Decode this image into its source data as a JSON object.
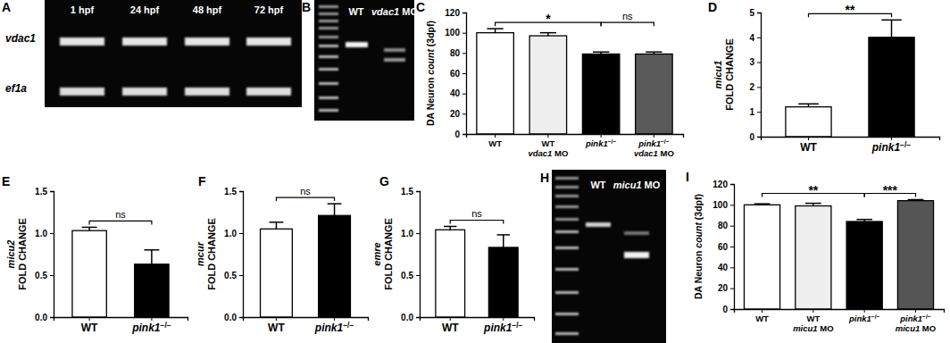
{
  "chart_data": [
    {
      "type": "bar",
      "panel_label": "C",
      "y_label": "DA Neuron count (3dpf)",
      "categories": [
        "WT",
        "WT vdac1 MO",
        "pink1−/−",
        "pink1−/− vdac1 MO"
      ],
      "values": [
        100,
        97,
        79,
        79
      ],
      "errors": [
        4,
        3,
        2,
        2
      ],
      "colors": [
        "#ffffff",
        "#eeeeee",
        "#000000",
        "#5a5a5a"
      ],
      "ylim": [
        0,
        120
      ],
      "yticks": [
        0,
        20,
        40,
        60,
        80,
        100,
        120
      ],
      "annotations": [
        {
          "from": 0,
          "to": 2,
          "text": "*"
        },
        {
          "from": 2,
          "to": 3,
          "text": "ns"
        }
      ]
    },
    {
      "type": "bar",
      "panel_label": "D",
      "y_label": "micu1 FOLD CHANGE",
      "categories": [
        "WT",
        "pink1−/−"
      ],
      "values": [
        1.2,
        4.0
      ],
      "errors": [
        0.12,
        0.7
      ],
      "colors": [
        "#ffffff",
        "#000000"
      ],
      "ylim": [
        0,
        5
      ],
      "yticks": [
        0,
        1,
        2,
        3,
        4,
        5
      ],
      "annotations": [
        {
          "from": 0,
          "to": 1,
          "text": "**"
        }
      ]
    },
    {
      "type": "bar",
      "panel_label": "E",
      "y_label": "micu2 FOLD CHANGE",
      "categories": [
        "WT",
        "pink1−/−"
      ],
      "values": [
        1.03,
        0.63
      ],
      "errors": [
        0.04,
        0.17
      ],
      "colors": [
        "#ffffff",
        "#000000"
      ],
      "ylim": [
        0,
        1.5
      ],
      "yticks": [
        {
          "value": 0,
          "label": "0.0"
        },
        {
          "value": 0.5,
          "label": "0.5"
        },
        {
          "value": 1,
          "label": "1.0"
        },
        {
          "value": 1.5,
          "label": "1.5"
        }
      ],
      "annotations": [
        {
          "from": 0,
          "to": 1,
          "text": "ns"
        }
      ]
    },
    {
      "type": "bar",
      "panel_label": "F",
      "y_label": "mcur FOLD CHANGE",
      "categories": [
        "WT",
        "pink1−/−"
      ],
      "values": [
        1.05,
        1.21
      ],
      "errors": [
        0.08,
        0.14
      ],
      "colors": [
        "#ffffff",
        "#000000"
      ],
      "ylim": [
        0,
        1.5
      ],
      "yticks": [
        {
          "value": 0,
          "label": "0.0"
        },
        {
          "value": 0.5,
          "label": "0.5"
        },
        {
          "value": 1,
          "label": "1.0"
        },
        {
          "value": 1.5,
          "label": "1.5"
        }
      ],
      "annotations": [
        {
          "from": 0,
          "to": 1,
          "text": "ns"
        }
      ]
    },
    {
      "type": "bar",
      "panel_label": "G",
      "y_label": "emre FOLD CHANGE",
      "categories": [
        "WT",
        "pink1−/−"
      ],
      "values": [
        1.04,
        0.83
      ],
      "errors": [
        0.04,
        0.15
      ],
      "colors": [
        "#ffffff",
        "#000000"
      ],
      "ylim": [
        0,
        1.5
      ],
      "yticks": [
        {
          "value": 0,
          "label": "0.0"
        },
        {
          "value": 0.5,
          "label": "0.5"
        },
        {
          "value": 1,
          "label": "1.0"
        },
        {
          "value": 1.5,
          "label": "1.5"
        }
      ],
      "annotations": [
        {
          "from": 0,
          "to": 1,
          "text": "ns"
        }
      ]
    },
    {
      "type": "bar",
      "panel_label": "I",
      "y_label": "DA Neuron count (3dpf)",
      "categories": [
        "WT",
        "WT micu1 MO",
        "pink1−/−",
        "pink1−/− micu1 MO"
      ],
      "values": [
        100,
        99,
        84,
        104
      ],
      "errors": [
        1,
        2.5,
        2,
        1
      ],
      "colors": [
        "#ffffff",
        "#eeeeee",
        "#000000",
        "#555555"
      ],
      "ylim": [
        0,
        120
      ],
      "yticks": [
        0,
        20,
        40,
        60,
        80,
        100,
        120
      ],
      "annotations": [
        {
          "from": 0,
          "to": 2,
          "text": "**"
        },
        {
          "from": 2,
          "to": 3,
          "text": "***"
        }
      ]
    }
  ],
  "gels": [
    {
      "panel_label": "A",
      "lanes": [
        "1 hpf",
        "24 hpf",
        "48 hpf",
        "72 hpf"
      ],
      "rows": [
        "vdac1",
        "ef1a"
      ]
    },
    {
      "panel_label": "B",
      "lanes": [
        "WT",
        "vdac1 MO"
      ]
    },
    {
      "panel_label": "H",
      "lanes": [
        "WT",
        "micu1 MO"
      ]
    }
  ]
}
